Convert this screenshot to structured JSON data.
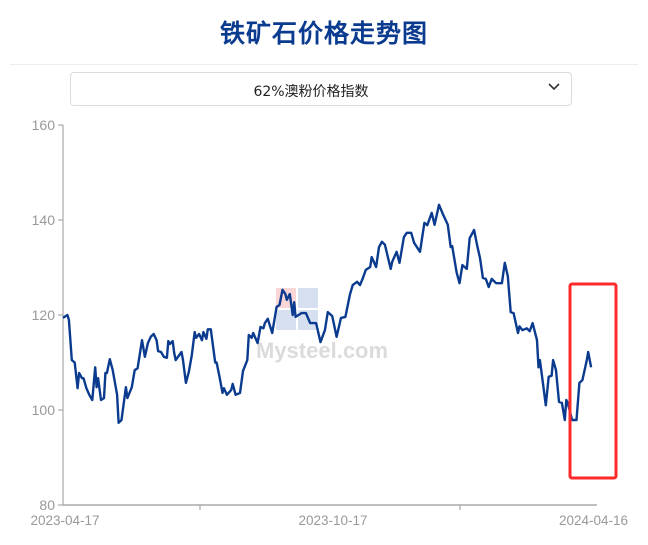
{
  "header": {
    "title": "铁矿石价格走势图"
  },
  "selector": {
    "selected": "62%澳粉价格指数",
    "icon": "chevron-down-icon"
  },
  "watermark": {
    "text": "Mysteel.com",
    "logo_chars": "我的钢铁"
  },
  "colors": {
    "line": "#0b3b8f",
    "title": "#0b3b8f",
    "highlight_box": "#ff2a2a",
    "axis": "#999999"
  },
  "chart_data": {
    "type": "line",
    "title": "",
    "xlabel": "",
    "ylabel": "",
    "ylim": [
      80,
      160
    ],
    "yticks": [
      80,
      100,
      120,
      140,
      160
    ],
    "xlim": [
      "2023-04-17",
      "2024-04-16"
    ],
    "xtick_labels": [
      "2023-04-17",
      "2023-10-17",
      "2024-04-16"
    ],
    "grid": false,
    "annotation": "red rectangle highlighting the latest rebound (late March to mid April 2024)",
    "series": [
      {
        "points": [
          [
            "2023-04-17",
            119.4
          ],
          [
            "2023-04-20",
            120
          ],
          [
            "2023-04-21",
            119
          ],
          [
            "2023-04-23",
            110.5
          ],
          [
            "2023-04-25",
            110
          ],
          [
            "2023-04-27",
            104.6
          ],
          [
            "2023-04-28",
            107.8
          ],
          [
            "2023-04-30",
            106.7
          ],
          [
            "2023-05-01",
            106.7
          ],
          [
            "2023-05-03",
            104.6
          ],
          [
            "2023-05-05",
            103.2
          ],
          [
            "2023-05-07",
            102.1
          ],
          [
            "2023-05-09",
            109
          ],
          [
            "2023-05-10",
            104.8
          ],
          [
            "2023-05-11",
            106.7
          ],
          [
            "2023-05-13",
            102.1
          ],
          [
            "2023-05-15",
            102.5
          ],
          [
            "2023-05-16",
            107.8
          ],
          [
            "2023-05-17",
            107.8
          ],
          [
            "2023-05-19",
            110.7
          ],
          [
            "2023-05-21",
            108.4
          ],
          [
            "2023-05-24",
            103.2
          ],
          [
            "2023-05-25",
            97.3
          ],
          [
            "2023-05-27",
            97.9
          ],
          [
            "2023-05-30",
            104.8
          ],
          [
            "2023-05-31",
            102.5
          ],
          [
            "2023-06-03",
            104.8
          ],
          [
            "2023-06-05",
            108.4
          ],
          [
            "2023-06-07",
            108.8
          ],
          [
            "2023-06-10",
            114.7
          ],
          [
            "2023-06-12",
            111.2
          ],
          [
            "2023-06-14",
            114.1
          ],
          [
            "2023-06-16",
            115.4
          ],
          [
            "2023-06-18",
            116
          ],
          [
            "2023-06-20",
            114.7
          ],
          [
            "2023-06-21",
            112.4
          ],
          [
            "2023-06-23",
            112.2
          ],
          [
            "2023-06-25",
            111.2
          ],
          [
            "2023-06-27",
            111
          ],
          [
            "2023-06-28",
            114.5
          ],
          [
            "2023-06-29",
            113.9
          ],
          [
            "2023-07-01",
            114.5
          ],
          [
            "2023-07-02",
            112
          ],
          [
            "2023-07-03",
            110.5
          ],
          [
            "2023-07-07",
            112.2
          ],
          [
            "2023-07-08",
            110.5
          ],
          [
            "2023-07-10",
            105.7
          ],
          [
            "2023-07-12",
            108
          ],
          [
            "2023-07-14",
            111.4
          ],
          [
            "2023-07-16",
            116.4
          ],
          [
            "2023-07-17",
            115.2
          ],
          [
            "2023-07-19",
            116
          ],
          [
            "2023-07-21",
            114.7
          ],
          [
            "2023-07-22",
            116.4
          ],
          [
            "2023-07-24",
            115
          ],
          [
            "2023-07-25",
            117
          ],
          [
            "2023-07-27",
            117
          ],
          [
            "2023-07-30",
            110
          ],
          [
            "2023-07-31",
            110
          ],
          [
            "2023-08-02",
            107
          ],
          [
            "2023-08-04",
            103.6
          ],
          [
            "2023-08-05",
            104.6
          ],
          [
            "2023-08-07",
            103.2
          ],
          [
            "2023-08-10",
            104.2
          ],
          [
            "2023-08-11",
            105.5
          ],
          [
            "2023-08-13",
            103.2
          ],
          [
            "2023-08-16",
            103.6
          ],
          [
            "2023-08-18",
            108.2
          ],
          [
            "2023-08-21",
            110.5
          ],
          [
            "2023-08-22",
            115.8
          ],
          [
            "2023-08-24",
            115.2
          ],
          [
            "2023-08-25",
            116.2
          ],
          [
            "2023-08-28",
            114.1
          ],
          [
            "2023-08-30",
            117.5
          ],
          [
            "2023-09-01",
            117.2
          ],
          [
            "2023-09-02",
            118.3
          ],
          [
            "2023-09-04",
            119.2
          ],
          [
            "2023-09-07",
            116.2
          ],
          [
            "2023-09-10",
            121.7
          ],
          [
            "2023-09-12",
            122.1
          ],
          [
            "2023-09-14",
            125.3
          ],
          [
            "2023-09-16",
            124.4
          ],
          [
            "2023-09-17",
            123.2
          ],
          [
            "2023-09-19",
            124.4
          ],
          [
            "2023-09-21",
            120
          ],
          [
            "2023-09-22",
            122.7
          ],
          [
            "2023-09-23",
            119.6
          ],
          [
            "2023-09-27",
            120.4
          ],
          [
            "2023-09-30",
            120.4
          ],
          [
            "2023-10-03",
            118.3
          ],
          [
            "2023-10-07",
            118.3
          ],
          [
            "2023-10-10",
            114.3
          ],
          [
            "2023-10-13",
            116.8
          ],
          [
            "2023-10-15",
            120.6
          ],
          [
            "2023-10-18",
            119.8
          ],
          [
            "2023-10-21",
            115.4
          ],
          [
            "2023-10-24",
            119.4
          ],
          [
            "2023-10-27",
            119.6
          ],
          [
            "2023-10-30",
            124.2
          ],
          [
            "2023-11-01",
            126.3
          ],
          [
            "2023-11-04",
            127
          ],
          [
            "2023-11-06",
            126.3
          ],
          [
            "2023-11-08",
            127.8
          ],
          [
            "2023-11-10",
            129.5
          ],
          [
            "2023-11-13",
            130.1
          ],
          [
            "2023-11-14",
            132.2
          ],
          [
            "2023-11-17",
            130.1
          ],
          [
            "2023-11-19",
            134.3
          ],
          [
            "2023-11-21",
            135.4
          ],
          [
            "2023-11-23",
            134.8
          ],
          [
            "2023-11-27",
            129.7
          ],
          [
            "2023-11-28",
            131.2
          ],
          [
            "2023-12-01",
            133.3
          ],
          [
            "2023-12-03",
            131
          ],
          [
            "2023-12-06",
            136.4
          ],
          [
            "2023-12-08",
            137.3
          ],
          [
            "2023-12-11",
            137.3
          ],
          [
            "2023-12-13",
            135.2
          ],
          [
            "2023-12-17",
            133.3
          ],
          [
            "2023-12-20",
            139.4
          ],
          [
            "2023-12-22",
            138.9
          ],
          [
            "2023-12-25",
            141.5
          ],
          [
            "2023-12-27",
            139
          ],
          [
            "2023-12-30",
            143.2
          ],
          [
            "2024-01-02",
            141
          ],
          [
            "2024-01-05",
            139
          ],
          [
            "2024-01-07",
            134.3
          ],
          [
            "2024-01-08",
            134.5
          ],
          [
            "2024-01-11",
            129
          ],
          [
            "2024-01-13",
            126.7
          ],
          [
            "2024-01-15",
            130.5
          ],
          [
            "2024-01-18",
            129.7
          ],
          [
            "2024-01-20",
            136.2
          ],
          [
            "2024-01-23",
            137.9
          ],
          [
            "2024-01-25",
            134.8
          ],
          [
            "2024-01-27",
            132
          ],
          [
            "2024-01-29",
            127.8
          ],
          [
            "2024-01-31",
            127.6
          ],
          [
            "2024-02-02",
            125.9
          ],
          [
            "2024-02-04",
            127.6
          ],
          [
            "2024-02-07",
            126.7
          ],
          [
            "2024-02-11",
            126.7
          ],
          [
            "2024-02-13",
            131
          ],
          [
            "2024-02-15",
            128.2
          ],
          [
            "2024-02-17",
            120.6
          ],
          [
            "2024-02-19",
            120.4
          ],
          [
            "2024-02-22",
            116.2
          ],
          [
            "2024-02-23",
            117.6
          ],
          [
            "2024-02-25",
            116.8
          ],
          [
            "2024-02-28",
            117.2
          ],
          [
            "2024-03-01",
            116.6
          ],
          [
            "2024-03-03",
            118.3
          ],
          [
            "2024-03-06",
            114.7
          ],
          [
            "2024-03-07",
            109
          ],
          [
            "2024-03-08",
            110.5
          ],
          [
            "2024-03-10",
            105.7
          ],
          [
            "2024-03-12",
            101
          ],
          [
            "2024-03-14",
            107
          ],
          [
            "2024-03-16",
            107.2
          ],
          [
            "2024-03-17",
            110.5
          ],
          [
            "2024-03-19",
            108.4
          ],
          [
            "2024-03-21",
            101.7
          ],
          [
            "2024-03-23",
            101.5
          ],
          [
            "2024-03-25",
            97.9
          ],
          [
            "2024-03-26",
            102.1
          ],
          [
            "2024-03-27",
            101.5
          ],
          [
            "2024-03-30",
            97.9
          ],
          [
            "2024-04-02",
            97.9
          ],
          [
            "2024-04-04",
            105.7
          ],
          [
            "2024-04-06",
            106.3
          ],
          [
            "2024-04-09",
            110.5
          ],
          [
            "2024-04-10",
            112.2
          ],
          [
            "2024-04-12",
            109
          ]
        ]
      }
    ]
  }
}
